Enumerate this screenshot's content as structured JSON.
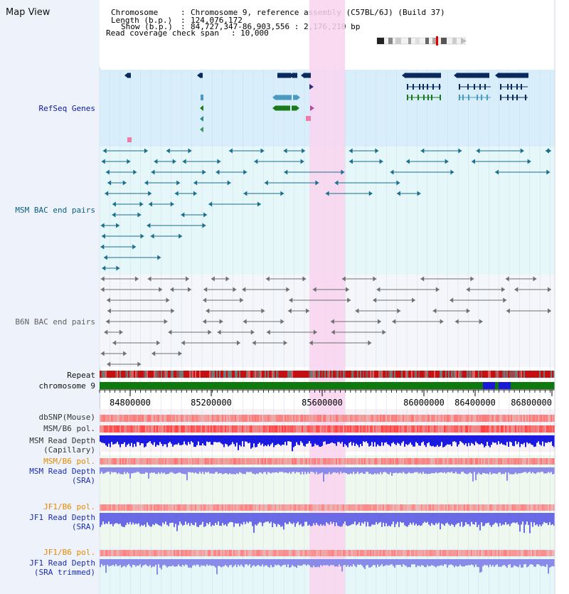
{
  "app": {
    "title": "Map View"
  },
  "info": {
    "chromosome_key": "Chromosome",
    "chromosome_value": "Chromosome 9, reference assembly (C57BL/6J) (Build 37)",
    "length_key": "Length (b.p.)",
    "length_value": "124,076,172",
    "show_key": "Show (b.p.)",
    "show_value": "84,727,347-86,903,556 : 2,176,210 bp",
    "span_key": "Read coverage check span",
    "span_value": "10,000"
  },
  "tracks": {
    "refseq": "RefSeq Genes",
    "msm_bac": "MSM BAC end pairs",
    "b6n_bac": "B6N BAC end pairs",
    "repeat": "Repeat",
    "chromosome": "chromosome 9",
    "dbsnp": "dbSNP(Mouse)",
    "msm_b6_pol_1": "MSM/B6 pol.",
    "msm_depth_cap_1": "MSM Read Depth",
    "msm_depth_cap_2": "(Capillary)",
    "msm_b6_pol_2": "MSM/B6 pol.",
    "msm_depth_sra_1": "MSM Read Depth",
    "msm_depth_sra_2": "(SRA)",
    "jf1_b6_pol_1": "JF1/B6 pol.",
    "jf1_depth_sra_1": "JF1 Read Depth",
    "jf1_depth_sra_2": "(SRA)",
    "jf1_b6_pol_2": "JF1/B6 pol.",
    "jf1_depth_trim_1": "JF1 Read Depth",
    "jf1_depth_trim_2": "(SRA trimmed)"
  },
  "axis": {
    "ticks": [
      "84800000",
      "85200000",
      "85600000",
      "86000000",
      "86400000",
      "86800000"
    ]
  },
  "colors": {
    "highlight": "#f9d3ef",
    "refseq_bg": "#d9eefb",
    "bac_bg": "#e6f7f9",
    "gene_dark": "#0a2a5e",
    "gene_light": "#4a9ac0",
    "gene_green": "#1b7a1b",
    "chromosome_bar": "#0e7a0e",
    "repeat_red": "#c00000"
  }
}
